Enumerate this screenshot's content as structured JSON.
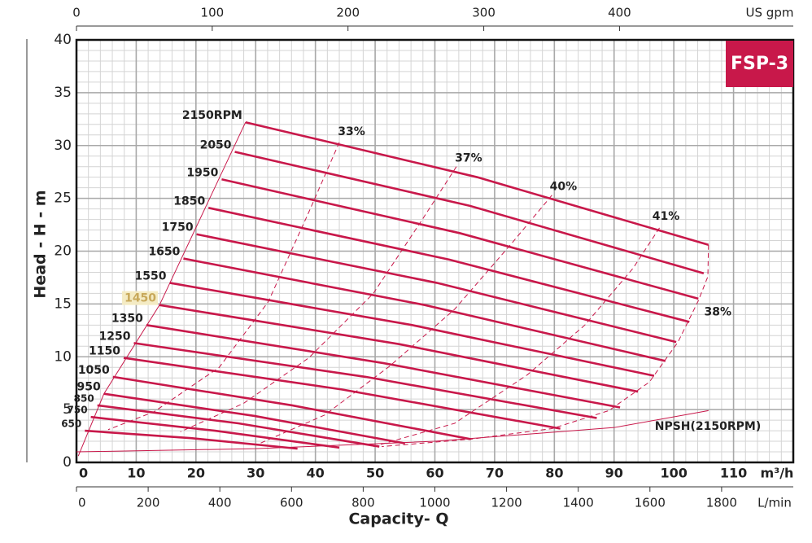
{
  "chart_data": {
    "type": "line",
    "badge": "FSP-3",
    "ylabel": "Head - H - m",
    "xlabel": "Capacity- Q",
    "ylim": [
      0,
      40
    ],
    "yticks": [
      0,
      5,
      10,
      15,
      20,
      25,
      30,
      35,
      40
    ],
    "xlim": [
      0,
      120
    ],
    "xticks": [
      0,
      10,
      20,
      30,
      40,
      50,
      60,
      70,
      80,
      90,
      100,
      110
    ],
    "xunit": "m³/h",
    "x2lim": [
      0,
      528
    ],
    "x2ticks": [
      0,
      100,
      200,
      300,
      400
    ],
    "x2unit": "US gpm",
    "x3lim": [
      0,
      2000
    ],
    "x3ticks": [
      0,
      200,
      400,
      600,
      800,
      1000,
      1200,
      1400,
      1600,
      1800
    ],
    "x3unit": "L/min",
    "grid": true,
    "color": "#c8184a",
    "highlight": "1450",
    "series": [
      {
        "name": "2150RPM",
        "x": [
          28.3,
          67.1,
          105.8
        ],
        "y": [
          32.2,
          27.0,
          20.6
        ]
      },
      {
        "name": "2050",
        "x": [
          26.5,
          65.8,
          105.0
        ],
        "y": [
          29.4,
          24.3,
          17.9
        ]
      },
      {
        "name": "1950",
        "x": [
          24.3,
          64.2,
          104.1
        ],
        "y": [
          26.8,
          21.7,
          15.5
        ]
      },
      {
        "name": "1850",
        "x": [
          22.1,
          62.4,
          102.6
        ],
        "y": [
          24.1,
          19.2,
          13.3
        ]
      },
      {
        "name": "1750",
        "x": [
          20.1,
          60.3,
          100.4
        ],
        "y": [
          21.6,
          17.0,
          11.4
        ]
      },
      {
        "name": "1650",
        "x": [
          17.9,
          58.3,
          98.6
        ],
        "y": [
          19.3,
          14.9,
          9.6
        ]
      },
      {
        "name": "1550",
        "x": [
          15.6,
          56.2,
          96.7
        ],
        "y": [
          17.0,
          13.0,
          8.2
        ]
      },
      {
        "name": "1450",
        "x": [
          13.9,
          54.0,
          94.0
        ],
        "y": [
          14.9,
          11.2,
          6.7
        ]
      },
      {
        "name": "1350",
        "x": [
          11.7,
          51.4,
          91.0
        ],
        "y": [
          13.0,
          9.4,
          5.2
        ]
      },
      {
        "name": "1250",
        "x": [
          9.6,
          48.4,
          87.1
        ],
        "y": [
          11.3,
          8.1,
          4.2
        ]
      },
      {
        "name": "1150",
        "x": [
          7.9,
          44.5,
          81.0
        ],
        "y": [
          9.9,
          6.9,
          3.2
        ]
      },
      {
        "name": "1050",
        "x": [
          6.1,
          36.1,
          66.0
        ],
        "y": [
          8.1,
          5.4,
          2.2
        ]
      },
      {
        "name": "950",
        "x": [
          4.6,
          29.8,
          55.0
        ],
        "y": [
          6.5,
          4.4,
          1.8
        ]
      },
      {
        "name": "850",
        "x": [
          3.5,
          27.1,
          50.7
        ],
        "y": [
          5.4,
          3.7,
          1.5
        ]
      },
      {
        "name": "750",
        "x": [
          2.4,
          23.2,
          44.0
        ],
        "y": [
          4.3,
          3.0,
          1.4
        ]
      },
      {
        "name": "650",
        "x": [
          1.4,
          19.2,
          37.0
        ],
        "y": [
          3.0,
          2.3,
          1.3
        ]
      }
    ],
    "limit": {
      "x": [
        28.3,
        13.9,
        4.6,
        0.3
      ],
      "y": [
        32.2,
        14.9,
        6.5,
        0.6
      ]
    },
    "efficiency": [
      {
        "name": "33%",
        "x": [
          44.0,
          38.9,
          32.1,
          23.9,
          13.0,
          5.3
        ],
        "y": [
          30.3,
          23.7,
          15.2,
          9.0,
          4.8,
          3.1
        ]
      },
      {
        "name": "37%",
        "x": [
          63.6,
          57.9,
          49.7,
          38.9,
          28.0,
          17.4
        ],
        "y": [
          28.0,
          23.0,
          16.0,
          9.9,
          5.6,
          2.9
        ]
      },
      {
        "name": "40%",
        "x": [
          79.6,
          72.8,
          63.3,
          52.4,
          41.6,
          30.7
        ],
        "y": [
          25.3,
          20.7,
          14.5,
          9.1,
          4.5,
          1.8
        ]
      },
      {
        "name": "41%",
        "x": [
          97.6,
          93.2,
          85.1,
          75.5,
          63.3,
          49.7
        ],
        "y": [
          22.2,
          18.4,
          13.0,
          8.3,
          3.7,
          1.5
        ]
      },
      {
        "name": "38%",
        "x": [
          105.8,
          105.7,
          104.1,
          100.7,
          95.9,
          89.1,
          79.6,
          66.0,
          51.1
        ],
        "y": [
          20.6,
          17.6,
          15.3,
          11.4,
          7.6,
          4.9,
          3.2,
          2.2,
          1.5
        ]
      }
    ],
    "npsh": {
      "name": "NPSH(2150RPM)",
      "x": [
        0,
        30,
        60,
        90,
        105.8
      ],
      "y": [
        1.0,
        1.3,
        2.0,
        3.3,
        4.9
      ]
    }
  }
}
